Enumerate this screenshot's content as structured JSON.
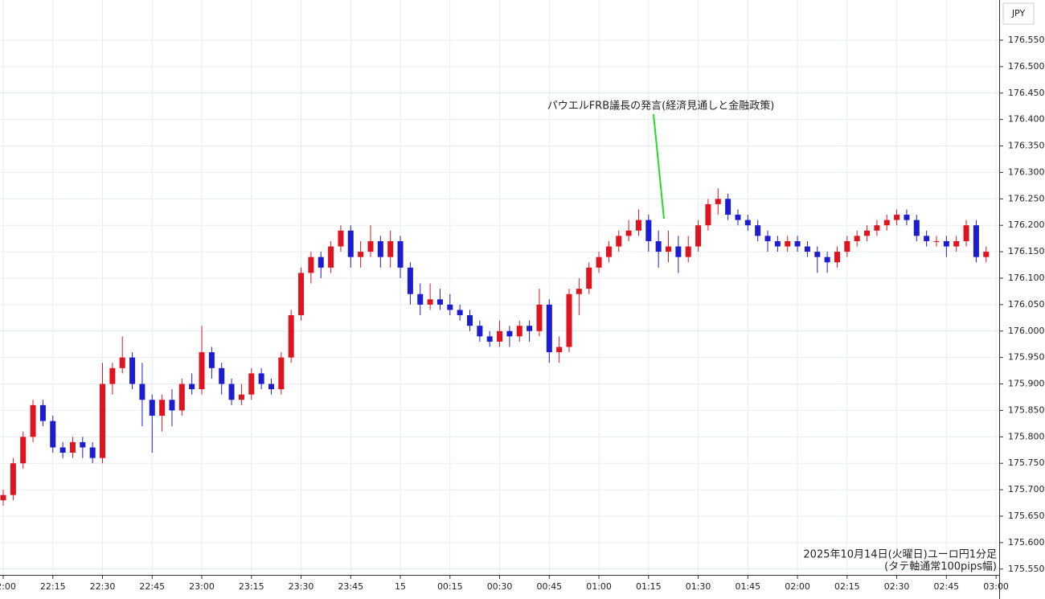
{
  "chart_data": {
    "type": "candlestick",
    "currency": "JPY",
    "annotation": "パウエルFRB議長の発言(経済見通しと金融政策)",
    "caption": [
      "2025年10月14日(火曜日)ユーロ円1分足",
      "(タテ軸通常100pips幅)"
    ],
    "up_color": "#e0141e",
    "down_color": "#1c1cd0",
    "grid": true,
    "x": [
      "22:00",
      "22:03",
      "22:06",
      "22:09",
      "22:12",
      "22:15",
      "22:18",
      "22:21",
      "22:24",
      "22:27",
      "22:30",
      "22:33",
      "22:36",
      "22:39",
      "22:42",
      "22:45",
      "22:48",
      "22:51",
      "22:54",
      "22:57",
      "23:00",
      "23:03",
      "23:06",
      "23:09",
      "23:12",
      "23:15",
      "23:18",
      "23:21",
      "23:24",
      "23:27",
      "23:30",
      "23:33",
      "23:36",
      "23:39",
      "23:42",
      "23:45",
      "23:48",
      "23:51",
      "23:54",
      "23:57",
      "00:00",
      "00:03",
      "00:06",
      "00:09",
      "00:12",
      "00:15",
      "00:18",
      "00:21",
      "00:24",
      "00:27",
      "00:30",
      "00:33",
      "00:36",
      "00:39",
      "00:42",
      "00:45",
      "00:48",
      "00:51",
      "00:54",
      "00:57",
      "01:00",
      "01:03",
      "01:06",
      "01:09",
      "01:12",
      "01:15",
      "01:18",
      "01:21",
      "01:24",
      "01:27",
      "01:30",
      "01:33",
      "01:36",
      "01:39",
      "01:42",
      "01:45",
      "01:48",
      "01:51",
      "01:54",
      "01:57",
      "02:00",
      "02:03",
      "02:06",
      "02:09",
      "02:12",
      "02:15",
      "02:18",
      "02:21",
      "02:24",
      "02:27",
      "02:30",
      "02:33",
      "02:36",
      "02:39",
      "02:42",
      "02:45",
      "02:48",
      "02:51",
      "02:54",
      "02:57"
    ],
    "open": [
      175.68,
      175.69,
      175.75,
      175.8,
      175.86,
      175.83,
      175.78,
      175.77,
      175.79,
      175.78,
      175.76,
      175.9,
      175.93,
      175.95,
      175.9,
      175.87,
      175.84,
      175.87,
      175.85,
      175.9,
      175.89,
      175.96,
      175.93,
      175.9,
      175.87,
      175.88,
      175.92,
      175.9,
      175.89,
      175.95,
      176.03,
      176.11,
      176.14,
      176.12,
      176.16,
      176.19,
      176.14,
      176.15,
      176.17,
      176.14,
      176.17,
      176.12,
      176.07,
      176.05,
      176.06,
      176.05,
      176.04,
      176.03,
      176.01,
      175.99,
      175.98,
      176.0,
      175.99,
      176.01,
      176.0,
      176.05,
      175.96,
      175.97,
      176.07,
      176.08,
      176.12,
      176.14,
      176.16,
      176.18,
      176.19,
      176.21,
      176.17,
      176.15,
      176.16,
      176.14,
      176.16,
      176.2,
      176.24,
      176.25,
      176.22,
      176.21,
      176.2,
      176.18,
      176.17,
      176.16,
      176.17,
      176.16,
      176.15,
      176.14,
      176.13,
      176.15,
      176.17,
      176.18,
      176.19,
      176.2,
      176.21,
      176.22,
      176.21,
      176.18,
      176.17,
      176.17,
      176.16,
      176.17,
      176.2,
      176.14
    ],
    "high": [
      175.7,
      175.76,
      175.81,
      175.87,
      175.87,
      175.84,
      175.79,
      175.8,
      175.8,
      175.79,
      175.94,
      175.94,
      175.99,
      175.96,
      175.94,
      175.88,
      175.88,
      175.89,
      175.91,
      175.92,
      176.01,
      175.97,
      175.94,
      175.91,
      175.9,
      175.93,
      175.93,
      175.91,
      175.96,
      176.04,
      176.12,
      176.15,
      176.15,
      176.17,
      176.2,
      176.2,
      176.17,
      176.2,
      176.18,
      176.19,
      176.18,
      176.13,
      176.09,
      176.09,
      176.08,
      176.07,
      176.05,
      176.04,
      176.02,
      176.0,
      176.02,
      176.01,
      176.02,
      176.02,
      176.08,
      176.06,
      175.99,
      176.08,
      176.1,
      176.13,
      176.15,
      176.17,
      176.19,
      176.21,
      176.23,
      176.22,
      176.19,
      176.19,
      176.18,
      176.18,
      176.21,
      176.25,
      176.27,
      176.26,
      176.23,
      176.22,
      176.21,
      176.19,
      176.18,
      176.18,
      176.18,
      176.17,
      176.16,
      176.15,
      176.16,
      176.18,
      176.19,
      176.2,
      176.21,
      176.22,
      176.23,
      176.23,
      176.22,
      176.19,
      176.18,
      176.18,
      176.18,
      176.21,
      176.21,
      176.16
    ],
    "low": [
      175.67,
      175.68,
      175.74,
      175.79,
      175.82,
      175.77,
      175.76,
      175.76,
      175.76,
      175.75,
      175.75,
      175.88,
      175.92,
      175.89,
      175.82,
      175.77,
      175.81,
      175.82,
      175.84,
      175.88,
      175.88,
      175.91,
      175.88,
      175.86,
      175.86,
      175.87,
      175.89,
      175.88,
      175.88,
      175.94,
      176.02,
      176.09,
      176.1,
      176.11,
      176.15,
      176.12,
      176.12,
      176.14,
      176.12,
      176.12,
      176.1,
      176.05,
      176.03,
      176.04,
      176.04,
      176.03,
      176.02,
      176.0,
      175.98,
      175.97,
      175.97,
      175.97,
      175.98,
      175.98,
      175.99,
      175.94,
      175.94,
      175.96,
      176.03,
      176.07,
      176.11,
      176.13,
      176.15,
      176.17,
      176.18,
      176.15,
      176.12,
      176.13,
      176.11,
      176.13,
      176.15,
      176.19,
      176.22,
      176.21,
      176.2,
      176.19,
      176.17,
      176.15,
      176.15,
      176.15,
      176.15,
      176.14,
      176.11,
      176.11,
      176.12,
      176.14,
      176.16,
      176.17,
      176.18,
      176.19,
      176.2,
      176.2,
      176.17,
      176.16,
      176.16,
      176.14,
      176.15,
      176.16,
      176.13,
      176.13
    ],
    "close": [
      175.69,
      175.75,
      175.8,
      175.86,
      175.83,
      175.78,
      175.77,
      175.79,
      175.78,
      175.76,
      175.9,
      175.93,
      175.95,
      175.9,
      175.87,
      175.84,
      175.87,
      175.85,
      175.9,
      175.89,
      175.96,
      175.93,
      175.9,
      175.87,
      175.88,
      175.92,
      175.9,
      175.89,
      175.95,
      176.03,
      176.11,
      176.14,
      176.12,
      176.16,
      176.19,
      176.14,
      176.15,
      176.17,
      176.14,
      176.17,
      176.12,
      176.07,
      176.05,
      176.06,
      176.05,
      176.04,
      176.03,
      176.01,
      175.99,
      175.98,
      176.0,
      175.99,
      176.01,
      176.0,
      176.05,
      175.96,
      175.97,
      176.07,
      176.08,
      176.12,
      176.14,
      176.16,
      176.18,
      176.19,
      176.21,
      176.17,
      176.15,
      176.16,
      176.14,
      176.16,
      176.2,
      176.24,
      176.25,
      176.22,
      176.21,
      176.2,
      176.18,
      176.17,
      176.16,
      176.17,
      176.16,
      176.15,
      176.14,
      176.13,
      176.15,
      176.17,
      176.18,
      176.19,
      176.2,
      176.21,
      176.22,
      176.21,
      176.18,
      176.17,
      176.17,
      176.16,
      176.17,
      176.2,
      176.14,
      176.15
    ],
    "ylim": [
      175.539,
      176.626
    ],
    "yticks": [
      {
        "value": 175.55,
        "label": "175.550"
      },
      {
        "value": 175.6,
        "label": "175.600"
      },
      {
        "value": 175.65,
        "label": "175.650"
      },
      {
        "value": 175.7,
        "label": "175.700"
      },
      {
        "value": 175.75,
        "label": "175.750"
      },
      {
        "value": 175.8,
        "label": "175.800"
      },
      {
        "value": 175.85,
        "label": "175.850"
      },
      {
        "value": 175.9,
        "label": "175.900"
      },
      {
        "value": 175.95,
        "label": "175.950"
      },
      {
        "value": 176.0,
        "label": "176.000"
      },
      {
        "value": 176.05,
        "label": "176.050"
      },
      {
        "value": 176.1,
        "label": "176.100"
      },
      {
        "value": 176.15,
        "label": "176.150"
      },
      {
        "value": 176.2,
        "label": "176.200"
      },
      {
        "value": 176.25,
        "label": "176.250"
      },
      {
        "value": 176.3,
        "label": "176.300"
      },
      {
        "value": 176.35,
        "label": "176.350"
      },
      {
        "value": 176.4,
        "label": "176.400"
      },
      {
        "value": 176.45,
        "label": "176.450"
      },
      {
        "value": 176.5,
        "label": "176.500"
      },
      {
        "value": 176.55,
        "label": "176.550"
      }
    ],
    "xticks": [
      "22:00",
      "22:15",
      "22:30",
      "22:45",
      "23:00",
      "23:15",
      "23:30",
      "23:45",
      "15",
      "00:15",
      "00:30",
      "00:45",
      "01:00",
      "01:15",
      "01:30",
      "01:45",
      "02:00",
      "02:15",
      "02:30",
      "02:45",
      "03:00"
    ]
  }
}
